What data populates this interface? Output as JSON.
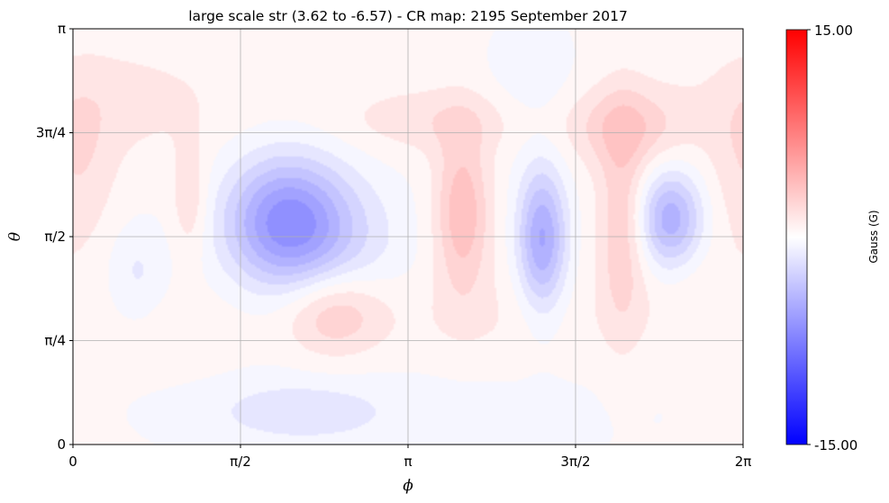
{
  "chart_data": {
    "type": "heatmap",
    "title": "large scale str (3.62 to -6.57) - CR map: 2195 September 2017",
    "xlabel": "ϕ",
    "ylabel": "θ",
    "x_ticks": [
      "0",
      "π/2",
      "π",
      "3π/2",
      "2π"
    ],
    "y_ticks": [
      "0",
      "π/4",
      "π/2",
      "3π/4",
      "π"
    ],
    "xlim": [
      0,
      6.2832
    ],
    "ylim": [
      0,
      3.1416
    ],
    "grid": true,
    "colormap": "bwr",
    "colorbar": {
      "label": "Gauss (G)",
      "min_label": "-15.00",
      "max_label": "15.00",
      "vmin": -15,
      "vmax": 15,
      "levels": 30,
      "placement": "right"
    },
    "field_range": [
      -6.57,
      3.62
    ],
    "blobs": [
      {
        "phi": 2.0,
        "theta": 1.68,
        "amp": -6.57,
        "sphi": 0.4,
        "stheta": 0.34
      },
      {
        "phi": 2.55,
        "theta": 1.45,
        "amp": -1.6,
        "sphi": 0.45,
        "stheta": 0.4
      },
      {
        "phi": 4.4,
        "theta": 1.55,
        "amp": -5.4,
        "sphi": 0.16,
        "stheta": 0.38
      },
      {
        "phi": 5.6,
        "theta": 1.7,
        "amp": -4.9,
        "sphi": 0.21,
        "stheta": 0.26
      },
      {
        "phi": 0.6,
        "theta": 1.3,
        "amp": -1.4,
        "sphi": 0.2,
        "stheta": 0.26
      },
      {
        "phi": 4.3,
        "theta": 2.75,
        "amp": -1.1,
        "sphi": 0.28,
        "stheta": 0.32
      },
      {
        "phi": 2.1,
        "theta": 0.25,
        "amp": -1.5,
        "sphi": 0.55,
        "stheta": 0.15
      },
      {
        "phi": 3.1,
        "theta": 0.3,
        "amp": -0.7,
        "sphi": 1.8,
        "stheta": 0.4
      },
      {
        "phi": 2.45,
        "theta": 1.0,
        "amp": 3.2,
        "sphi": 0.34,
        "stheta": 0.24
      },
      {
        "phi": 3.65,
        "theta": 1.75,
        "amp": 3.62,
        "sphi": 0.18,
        "stheta": 0.42
      },
      {
        "phi": 3.45,
        "theta": 2.45,
        "amp": 1.5,
        "sphi": 0.7,
        "stheta": 0.18
      },
      {
        "phi": 5.15,
        "theta": 1.65,
        "amp": 2.6,
        "sphi": 0.16,
        "stheta": 0.6
      },
      {
        "phi": 5.2,
        "theta": 2.4,
        "amp": 2.4,
        "sphi": 0.4,
        "stheta": 0.22
      },
      {
        "phi": 1.1,
        "theta": 1.85,
        "amp": 1.8,
        "sphi": 0.12,
        "stheta": 0.3
      },
      {
        "phi": 0.05,
        "theta": 2.1,
        "amp": 1.6,
        "sphi": 0.25,
        "stheta": 0.45
      },
      {
        "phi": 0.5,
        "theta": 2.6,
        "amp": 1.1,
        "sphi": 0.7,
        "stheta": 0.3
      },
      {
        "phi": 3.8,
        "theta": 0.9,
        "amp": 0.9,
        "sphi": 0.9,
        "stheta": 0.3
      },
      {
        "phi": 1.1,
        "theta": 0.85,
        "amp": 0.6,
        "sphi": 0.5,
        "stheta": 0.25
      },
      {
        "phi": 5.9,
        "theta": 1.1,
        "amp": 0.7,
        "sphi": 0.4,
        "stheta": 0.3
      }
    ]
  }
}
